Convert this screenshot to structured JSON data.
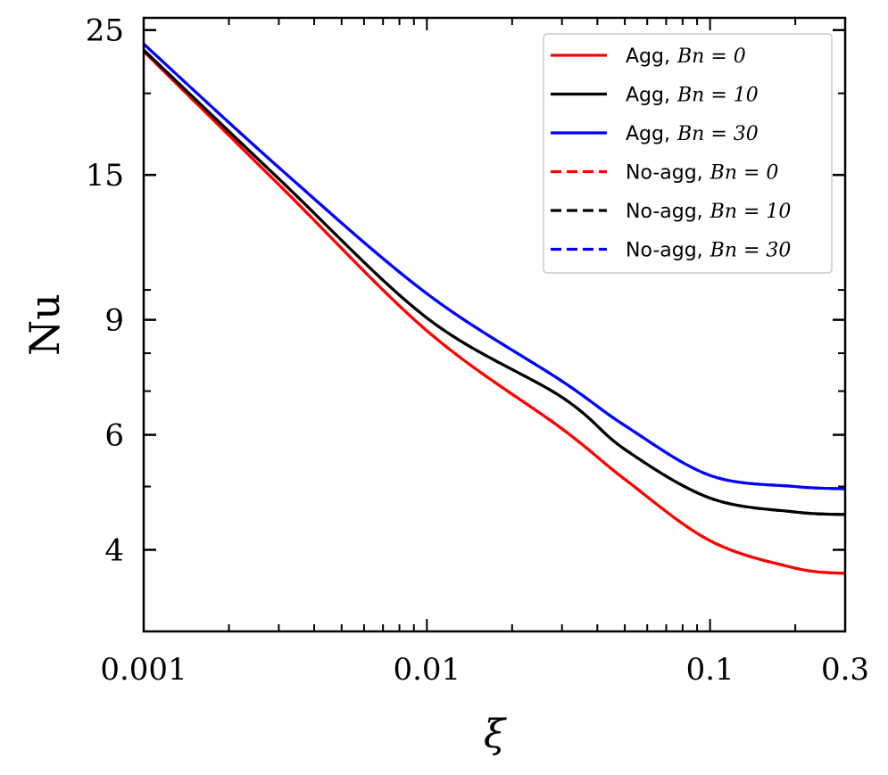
{
  "chart_data": {
    "type": "line",
    "title": "",
    "xlabel": "ξ",
    "ylabel": "Nu",
    "xscale": "log",
    "yscale": "log",
    "xlim": [
      0.001,
      0.3
    ],
    "ylim": [
      3.0,
      26.1
    ],
    "xticks": [
      0.001,
      0.01,
      0.1,
      0.3
    ],
    "xtick_labels": [
      "0.001",
      "0.01",
      "0.1",
      "0.3"
    ],
    "yticks": [
      4,
      6,
      9,
      15,
      25
    ],
    "ytick_labels": [
      "4",
      "6",
      "9",
      "15",
      "25"
    ],
    "grid": false,
    "legend_position": "top-right",
    "x": [
      0.001,
      0.003,
      0.01,
      0.03,
      0.05,
      0.1,
      0.2,
      0.3
    ],
    "series": [
      {
        "name": "Agg, B_n = 0",
        "label_text": "Agg,",
        "math": "Bn = 0",
        "color": "#ff0000",
        "style": "solid",
        "values": [
          23.2,
          14.5,
          8.66,
          6.13,
          5.13,
          4.13,
          3.75,
          3.68
        ]
      },
      {
        "name": "Agg, B_n = 10",
        "label_text": "Agg,",
        "math": "Bn = 10",
        "color": "#000000",
        "style": "solid",
        "values": [
          23.3,
          14.8,
          9.06,
          6.85,
          5.7,
          4.8,
          4.57,
          4.53
        ]
      },
      {
        "name": "Agg, B_n = 30",
        "label_text": "Agg,",
        "math": "Bn = 30",
        "color": "#0000ff",
        "style": "solid",
        "values": [
          23.8,
          15.4,
          9.87,
          7.25,
          6.2,
          5.2,
          5.0,
          4.96
        ]
      },
      {
        "name": "No-agg, B_n = 0",
        "label_text": "No-agg,",
        "math": "Bn = 0",
        "color": "#ff0000",
        "style": "dashed",
        "values": [
          23.2,
          14.5,
          8.66,
          6.13,
          5.13,
          4.13,
          3.75,
          3.68
        ]
      },
      {
        "name": "No-agg, B_n = 10",
        "label_text": "No-agg,",
        "math": "Bn = 10",
        "color": "#000000",
        "style": "dashed",
        "values": [
          23.3,
          14.8,
          9.06,
          6.85,
          5.7,
          4.8,
          4.57,
          4.53
        ]
      },
      {
        "name": "No-agg, B_n = 30",
        "label_text": "No-agg,",
        "math": "Bn = 30",
        "color": "#0000ff",
        "style": "dashed",
        "values": [
          23.8,
          15.4,
          9.87,
          7.25,
          6.2,
          5.2,
          5.0,
          4.96
        ]
      }
    ]
  }
}
